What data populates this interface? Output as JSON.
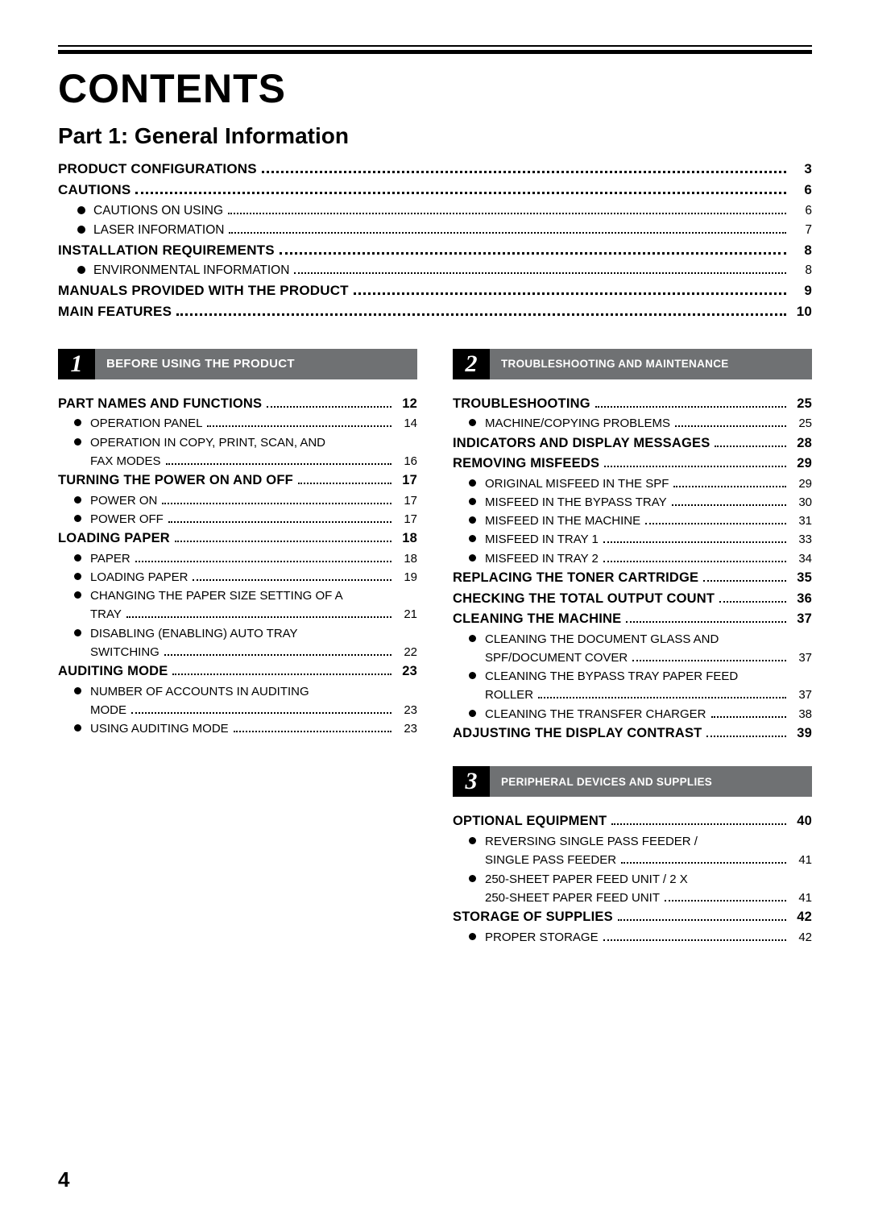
{
  "title": "CONTENTS",
  "partTitle": "Part 1: General Information",
  "pageNumber": "4",
  "topEntries": [
    {
      "level": 0,
      "label": "PRODUCT CONFIGURATIONS",
      "page": "3"
    },
    {
      "level": 0,
      "label": "CAUTIONS",
      "page": "6"
    },
    {
      "level": 1,
      "label": "CAUTIONS ON USING",
      "page": "6"
    },
    {
      "level": 1,
      "label": "LASER INFORMATION",
      "page": "7"
    },
    {
      "level": 0,
      "label": "INSTALLATION REQUIREMENTS",
      "page": "8"
    },
    {
      "level": 1,
      "label": "ENVIRONMENTAL INFORMATION",
      "page": "8"
    },
    {
      "level": 0,
      "label": "MANUALS PROVIDED WITH THE PRODUCT",
      "page": "9"
    },
    {
      "level": 0,
      "label": "MAIN FEATURES",
      "page": "10"
    }
  ],
  "chapters": {
    "c1": {
      "num": "1",
      "title": "BEFORE USING THE PRODUCT"
    },
    "c2": {
      "num": "2",
      "title": "TROUBLESHOOTING AND MAINTENANCE"
    },
    "c3": {
      "num": "3",
      "title": "PERIPHERAL DEVICES AND SUPPLIES"
    }
  },
  "col1": [
    {
      "level": 0,
      "label": "PART NAMES AND FUNCTIONS",
      "page": "12"
    },
    {
      "level": 1,
      "label": "OPERATION PANEL",
      "page": "14"
    },
    {
      "level": 1,
      "label": "OPERATION IN COPY, PRINT, SCAN, AND",
      "page": ""
    },
    {
      "level": 2,
      "label": "FAX MODES",
      "page": "16"
    },
    {
      "level": 0,
      "label": "TURNING THE POWER ON AND OFF",
      "page": "17"
    },
    {
      "level": 1,
      "label": "POWER ON",
      "page": "17"
    },
    {
      "level": 1,
      "label": "POWER OFF",
      "page": "17"
    },
    {
      "level": 0,
      "label": "LOADING PAPER",
      "page": "18"
    },
    {
      "level": 1,
      "label": "PAPER",
      "page": "18"
    },
    {
      "level": 1,
      "label": "LOADING PAPER",
      "page": "19"
    },
    {
      "level": 1,
      "label": "CHANGING THE PAPER SIZE SETTING OF A",
      "page": ""
    },
    {
      "level": 2,
      "label": "TRAY",
      "page": "21"
    },
    {
      "level": 1,
      "label": "DISABLING (ENABLING) AUTO TRAY",
      "page": ""
    },
    {
      "level": 2,
      "label": "SWITCHING",
      "page": "22"
    },
    {
      "level": 0,
      "label": "AUDITING MODE",
      "page": "23"
    },
    {
      "level": 1,
      "label": "NUMBER OF ACCOUNTS IN AUDITING",
      "page": ""
    },
    {
      "level": 2,
      "label": "MODE",
      "page": "23"
    },
    {
      "level": 1,
      "label": "USING AUDITING MODE",
      "page": "23"
    }
  ],
  "col2a": [
    {
      "level": 0,
      "label": "TROUBLESHOOTING",
      "page": "25"
    },
    {
      "level": 1,
      "label": "MACHINE/COPYING PROBLEMS",
      "page": "25"
    },
    {
      "level": 0,
      "label": "INDICATORS AND DISPLAY MESSAGES",
      "page": "28"
    },
    {
      "level": 0,
      "label": "REMOVING MISFEEDS",
      "page": "29"
    },
    {
      "level": 1,
      "label": "ORIGINAL MISFEED IN THE SPF",
      "page": "29"
    },
    {
      "level": 1,
      "label": "MISFEED IN THE BYPASS TRAY",
      "page": "30"
    },
    {
      "level": 1,
      "label": "MISFEED IN THE MACHINE",
      "page": "31"
    },
    {
      "level": 1,
      "label": "MISFEED IN TRAY 1",
      "page": "33"
    },
    {
      "level": 1,
      "label": "MISFEED IN TRAY 2",
      "page": "34"
    },
    {
      "level": 0,
      "label": "REPLACING THE TONER CARTRIDGE",
      "page": "35"
    },
    {
      "level": 0,
      "label": "CHECKING THE TOTAL OUTPUT COUNT",
      "page": "36"
    },
    {
      "level": 0,
      "label": "CLEANING THE MACHINE",
      "page": "37"
    },
    {
      "level": 1,
      "label": "CLEANING THE DOCUMENT GLASS AND",
      "page": ""
    },
    {
      "level": 2,
      "label": "SPF/DOCUMENT COVER",
      "page": "37"
    },
    {
      "level": 1,
      "label": "CLEANING THE BYPASS TRAY PAPER FEED",
      "page": ""
    },
    {
      "level": 2,
      "label": "ROLLER",
      "page": "37"
    },
    {
      "level": 1,
      "label": "CLEANING THE TRANSFER CHARGER",
      "page": "38"
    },
    {
      "level": 0,
      "label": "ADJUSTING THE DISPLAY CONTRAST",
      "page": "39"
    }
  ],
  "col2b": [
    {
      "level": 0,
      "label": "OPTIONAL EQUIPMENT",
      "page": "40"
    },
    {
      "level": 1,
      "label": "REVERSING SINGLE PASS FEEDER /",
      "page": ""
    },
    {
      "level": 2,
      "label": "SINGLE PASS FEEDER",
      "page": "41"
    },
    {
      "level": 1,
      "label": "250-SHEET PAPER FEED UNIT / 2 X",
      "page": ""
    },
    {
      "level": 2,
      "label": "250-SHEET PAPER FEED UNIT",
      "page": "41"
    },
    {
      "level": 0,
      "label": "STORAGE OF SUPPLIES",
      "page": "42"
    },
    {
      "level": 1,
      "label": "PROPER STORAGE",
      "page": "42"
    }
  ]
}
